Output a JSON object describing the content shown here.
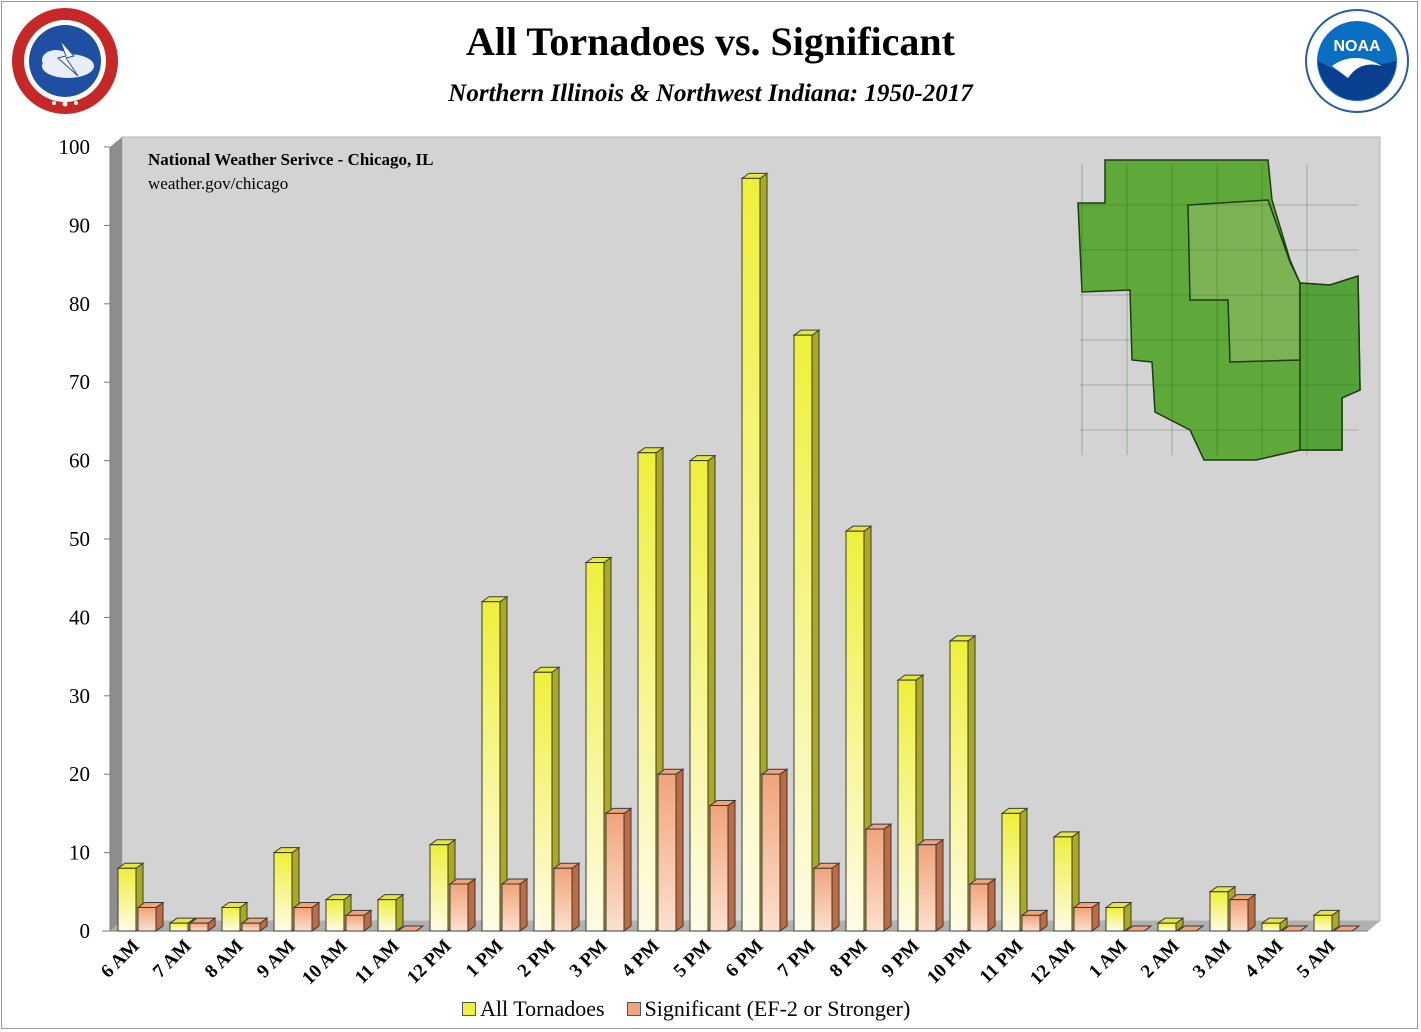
{
  "header": {
    "title": "All Tornadoes vs. Significant",
    "subtitle": "Northern Illinois & Northwest Indiana:  1950-2017"
  },
  "credit": {
    "line1": "National Weather Serivce - Chicago, IL",
    "line2": "weather.gov/chicago"
  },
  "logos": {
    "left": "national-weather-service-logo",
    "right": "noaa-logo",
    "noaa_text": "NOAA"
  },
  "colors": {
    "all_tornadoes": "#eef03a",
    "significant": "#f0a47a",
    "plot_background": "#d4d3d4"
  },
  "chart_data": {
    "type": "bar",
    "title": "All Tornadoes vs. Significant",
    "subtitle": "Northern Illinois & Northwest Indiana:  1950-2017",
    "xlabel": "",
    "ylabel": "",
    "ylim": [
      0,
      100
    ],
    "yticks": [
      0,
      10,
      20,
      30,
      40,
      50,
      60,
      70,
      80,
      90,
      100
    ],
    "grid": false,
    "legend": "bottom",
    "categories": [
      "6 AM",
      "7 AM",
      "8 AM",
      "9 AM",
      "10 AM",
      "11 AM",
      "12 PM",
      "1 PM",
      "2 PM",
      "3 PM",
      "4 PM",
      "5 PM",
      "6 PM",
      "7 PM",
      "8 PM",
      "9 PM",
      "10 PM",
      "11 PM",
      "12 AM",
      "1 AM",
      "2 AM",
      "3 AM",
      "4 AM",
      "5 AM"
    ],
    "series": [
      {
        "name": "All Tornadoes",
        "values": [
          8,
          1,
          3,
          10,
          4,
          4,
          11,
          42,
          33,
          47,
          61,
          60,
          96,
          76,
          51,
          32,
          37,
          15,
          12,
          3,
          1,
          5,
          1,
          2
        ]
      },
      {
        "name": "Significant (EF-2 or Stronger)",
        "values": [
          3,
          1,
          1,
          3,
          2,
          0,
          6,
          6,
          8,
          15,
          20,
          16,
          20,
          8,
          13,
          11,
          6,
          2,
          3,
          0,
          0,
          4,
          0,
          0
        ]
      }
    ]
  }
}
